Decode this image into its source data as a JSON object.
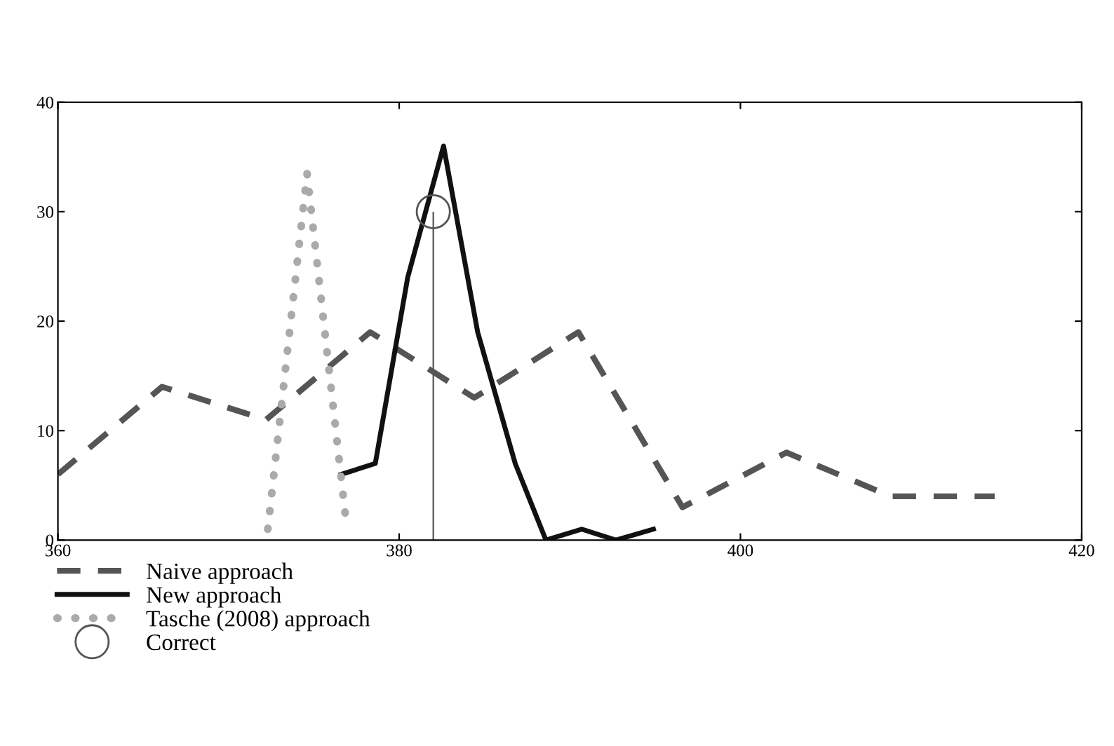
{
  "chart_data": {
    "type": "line",
    "xlim": [
      360,
      420
    ],
    "xticks": [
      360,
      380,
      400,
      420
    ],
    "ylim": [
      0,
      40
    ],
    "yticks": [
      0,
      10,
      20,
      30,
      40
    ],
    "grid": false,
    "legend": "bottom left",
    "series": [
      {
        "name": "Naive approach",
        "color": "#555555",
        "line_style": "dashed",
        "x": [
          360,
          366.1,
          372.2,
          378.3,
          384.4,
          390.5,
          396.6,
          402.7,
          408.8,
          414.9
        ],
        "values": [
          6,
          14,
          11,
          19,
          13,
          19,
          3,
          8,
          4,
          4
        ]
      },
      {
        "name": "New approach",
        "color": "#111111",
        "line_style": "solid",
        "x": [
          376.6,
          378.6,
          380.5,
          382.6,
          384.6,
          386.8,
          388.6,
          390.7,
          392.7,
          394.9
        ],
        "values": [
          6,
          7,
          24,
          36,
          19,
          7,
          0,
          1,
          0,
          1
        ]
      },
      {
        "name": "Tasche (2008) approach",
        "color": "#aaaaaa",
        "line_style": "dotted",
        "x": [
          372.3,
          374.6,
          376.9
        ],
        "values": [
          1,
          33.5,
          1.5
        ]
      },
      {
        "name": "Correct",
        "type": "lollipop",
        "color": "#555555",
        "marker": "circle",
        "x": [
          382
        ],
        "values": [
          30
        ]
      }
    ]
  }
}
